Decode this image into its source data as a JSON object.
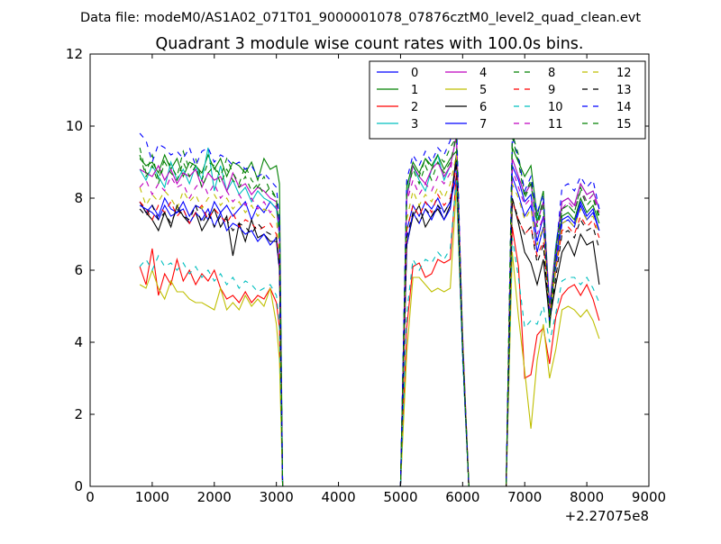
{
  "chart_data": {
    "type": "line",
    "suptitle": "Data file: modeM0/AS1A02_071T01_9000001078_07876cztM0_level2_quad_clean.evt",
    "title": "Quadrant 3 module wise count rates with 100.0s bins.",
    "xlabel": "",
    "ylabel": "",
    "x_offset_label": "+2.27075e8",
    "xlim": [
      0,
      9000
    ],
    "ylim": [
      0,
      12
    ],
    "xticks": [
      0,
      1000,
      2000,
      3000,
      4000,
      5000,
      6000,
      7000,
      8000,
      9000
    ],
    "yticks": [
      0,
      2,
      4,
      6,
      8,
      10,
      12
    ],
    "xtick_labels": [
      "0",
      "1000",
      "2000",
      "3000",
      "4000",
      "5000",
      "6000",
      "7000",
      "8000",
      "9000"
    ],
    "ytick_labels": [
      "0",
      "2",
      "4",
      "6",
      "8",
      "10",
      "12"
    ],
    "grid": false,
    "legend_position": "top-right",
    "legend_columns": 4,
    "x": [
      800,
      900,
      1000,
      1100,
      1200,
      1300,
      1400,
      1500,
      1600,
      1700,
      1800,
      1900,
      2000,
      2100,
      2200,
      2300,
      2400,
      2500,
      2600,
      2700,
      2800,
      2900,
      3000,
      3050,
      3100,
      3150,
      4950,
      5000,
      5100,
      5200,
      5300,
      5400,
      5500,
      5600,
      5700,
      5800,
      5900,
      6000,
      6100,
      6700,
      6800,
      6900,
      7000,
      7100,
      7200,
      7300,
      7400,
      7500,
      7600,
      7700,
      7800,
      7900,
      8000,
      8100,
      8200
    ],
    "series": [
      {
        "name": "0",
        "color": "#0000ff",
        "dash": "solid",
        "level": 7.7,
        "base": [
          0.2,
          -0.1,
          0.1,
          -0.2,
          0.3,
          0.0,
          -0.1,
          0.2,
          -0.2,
          0.1,
          0.0,
          -0.3,
          0.2,
          -0.1,
          0.1,
          -0.2,
          0.0,
          0.2,
          -0.3,
          0.1,
          -0.1,
          0.2,
          0.0,
          -0.4,
          -7.7,
          -7.7,
          -7.7,
          -7.7,
          -0.6,
          0.1,
          -0.2,
          0.2,
          0.0,
          0.3,
          -0.1,
          0.2,
          0.9,
          -4.0,
          -7.7,
          -7.7,
          0.9,
          0.4,
          -0.2,
          0.1,
          -1.2,
          -0.5,
          -2.9,
          -1.6,
          -0.4,
          -0.3,
          -0.5,
          0.1,
          -0.3,
          -0.1,
          -0.6
        ]
      },
      {
        "name": "1",
        "color": "#008000",
        "dash": "solid",
        "level": 8.9,
        "base": [
          0.2,
          0.0,
          0.1,
          -0.2,
          0.3,
          -0.1,
          0.2,
          -0.3,
          0.1,
          0.0,
          -0.2,
          0.3,
          -0.1,
          0.2,
          -0.3,
          0.1,
          0.0,
          -0.2,
          0.1,
          -0.4,
          0.2,
          -0.1,
          0.0,
          -0.5,
          -8.9,
          -8.9,
          -8.9,
          -8.9,
          -0.6,
          0.1,
          -0.2,
          0.2,
          0.0,
          0.3,
          -0.1,
          0.2,
          0.4,
          -5.0,
          -8.9,
          -8.9,
          0.5,
          0.1,
          -0.3,
          0.0,
          -1.4,
          -0.7,
          -4.5,
          -2.6,
          -1.4,
          -1.3,
          -1.5,
          -0.9,
          -1.3,
          -1.1,
          -1.6
        ]
      },
      {
        "name": "2",
        "color": "#ff0000",
        "dash": "solid",
        "level": 5.9,
        "base": [
          0.2,
          -0.3,
          0.7,
          -0.6,
          0.0,
          -0.3,
          0.4,
          -0.2,
          0.1,
          -0.3,
          0.0,
          -0.2,
          0.1,
          -0.4,
          -0.7,
          -0.6,
          -0.8,
          -0.5,
          -0.8,
          -0.6,
          -0.7,
          -0.4,
          -0.8,
          -1.5,
          -5.9,
          -5.9,
          -5.9,
          -5.9,
          -1.5,
          0.2,
          0.3,
          -0.1,
          0.0,
          0.4,
          0.3,
          0.4,
          2.8,
          -2.0,
          -5.9,
          -5.9,
          1.3,
          0.2,
          -2.9,
          -2.8,
          -1.7,
          -1.5,
          -2.5,
          -1.2,
          -0.6,
          -0.4,
          -0.3,
          -0.6,
          -0.3,
          -0.7,
          -1.3
        ]
      },
      {
        "name": "3",
        "color": "#00bfbf",
        "dash": "solid",
        "level": 8.5,
        "base": [
          0.3,
          0.0,
          0.4,
          0.1,
          -0.2,
          0.5,
          0.0,
          0.3,
          -0.1,
          0.4,
          0.0,
          0.9,
          -0.3,
          0.4,
          -0.3,
          0.0,
          -0.4,
          -0.2,
          -0.6,
          -0.3,
          -0.5,
          -0.6,
          -0.8,
          -1.6,
          -8.5,
          -8.5,
          -8.5,
          -8.5,
          -0.4,
          0.4,
          0.0,
          -0.3,
          0.3,
          0.7,
          0.0,
          0.4,
          1.2,
          -4.5,
          -8.5,
          -8.5,
          0.6,
          0.1,
          -0.4,
          -0.1,
          -1.1,
          -0.6,
          -3.5,
          -1.8,
          -0.6,
          -0.5,
          -0.7,
          -0.1,
          -0.4,
          -0.3,
          -0.8
        ]
      },
      {
        "name": "4",
        "color": "#bf00bf",
        "dash": "solid",
        "level": 8.6,
        "base": [
          0.2,
          0.1,
          0.0,
          0.3,
          -0.1,
          0.2,
          -0.2,
          0.1,
          0.0,
          0.2,
          -0.3,
          0.1,
          -0.1,
          0.0,
          -0.4,
          0.1,
          -0.3,
          -0.2,
          -0.5,
          -0.3,
          -0.4,
          -0.6,
          -0.7,
          -1.5,
          -8.6,
          -8.6,
          -8.6,
          -8.6,
          -0.6,
          0.3,
          0.0,
          -0.2,
          0.2,
          0.4,
          0.0,
          0.3,
          1.1,
          -4.4,
          -8.6,
          -8.6,
          0.5,
          0.0,
          -0.5,
          -0.2,
          -1.3,
          -0.7,
          -3.6,
          -2.0,
          -0.7,
          -0.6,
          -0.8,
          -0.2,
          -0.5,
          -0.4,
          -0.9
        ]
      },
      {
        "name": "5",
        "color": "#bfbf00",
        "dash": "solid",
        "level": 5.3,
        "base": [
          0.3,
          0.2,
          0.7,
          0.2,
          -0.1,
          0.4,
          0.1,
          0.1,
          -0.1,
          -0.2,
          -0.2,
          -0.3,
          -0.4,
          0.2,
          -0.4,
          -0.2,
          -0.4,
          0.0,
          -0.3,
          -0.1,
          -0.3,
          0.2,
          -0.8,
          -1.8,
          -5.3,
          -5.3,
          -5.3,
          -5.3,
          -1.6,
          0.5,
          0.5,
          0.3,
          0.1,
          0.2,
          0.1,
          0.2,
          3.0,
          -1.6,
          -5.3,
          -5.3,
          1.2,
          -0.6,
          -2.1,
          -3.7,
          -1.8,
          -0.8,
          -2.3,
          -1.5,
          -0.4,
          -0.3,
          -0.4,
          -0.6,
          -0.4,
          -0.7,
          -1.2
        ]
      },
      {
        "name": "6",
        "color": "#000000",
        "dash": "solid",
        "level": 7.4,
        "base": [
          0.5,
          0.2,
          0.0,
          -0.3,
          0.2,
          -0.2,
          0.4,
          0.1,
          -0.1,
          0.2,
          -0.3,
          0.0,
          0.3,
          -0.2,
          0.1,
          -1.0,
          -0.1,
          -0.6,
          0.0,
          -0.5,
          -0.4,
          -0.6,
          -0.6,
          -1.4,
          -7.4,
          -7.4,
          -7.4,
          -7.4,
          -0.7,
          0.1,
          0.4,
          -0.2,
          0.1,
          0.3,
          0.0,
          0.4,
          1.8,
          -3.6,
          -7.4,
          -7.4,
          0.6,
          -0.1,
          -0.9,
          -1.2,
          -1.8,
          -1.1,
          -2.8,
          -1.8,
          -0.9,
          -0.6,
          -1.0,
          -0.4,
          -0.7,
          -0.6,
          -1.8
        ]
      },
      {
        "name": "7",
        "color": "#0000ff",
        "dash": "solid",
        "level": 7.6,
        "base": [
          0.2,
          0.1,
          0.0,
          -0.2,
          0.2,
          -0.1,
          0.0,
          0.1,
          -0.3,
          0.0,
          -0.2,
          0.1,
          -0.4,
          0.0,
          -0.5,
          -0.3,
          -0.4,
          -0.6,
          -0.5,
          -0.8,
          -0.6,
          -0.9,
          -0.7,
          -1.6,
          -7.6,
          -7.6,
          -7.6,
          -7.6,
          -0.9,
          0.0,
          -0.3,
          0.1,
          -0.2,
          0.2,
          -0.2,
          0.1,
          1.4,
          -3.9,
          -7.6,
          -7.6,
          1.3,
          0.9,
          0.3,
          0.5,
          -0.8,
          -0.1,
          -2.6,
          -1.3,
          -0.2,
          -0.1,
          -0.3,
          0.3,
          -0.1,
          0.1,
          -0.5
        ]
      },
      {
        "name": "8",
        "color": "#008000",
        "dash": "dashed",
        "level": 8.9,
        "base": [
          0.5,
          -0.2,
          0.3,
          -0.4,
          0.2,
          0.0,
          -0.3,
          0.4,
          -0.1,
          0.2,
          -0.4,
          0.1,
          0.0,
          -0.3,
          0.2,
          -0.2,
          -0.5,
          0.0,
          -0.4,
          -0.6,
          -0.3,
          -0.7,
          -0.9,
          -1.8,
          -8.9,
          -8.9,
          -8.9,
          -8.9,
          -0.5,
          0.0,
          -0.3,
          0.2,
          -0.1,
          0.3,
          0.1,
          0.5,
          0.8,
          -4.9,
          -8.9,
          -8.9,
          0.9,
          0.3,
          -0.8,
          -0.4,
          -1.6,
          -0.9,
          -4.2,
          -2.3,
          -1.2,
          -1.1,
          -1.3,
          -0.6,
          -1.0,
          -0.8,
          -1.4
        ]
      },
      {
        "name": "9",
        "color": "#ff0000",
        "dash": "dashed",
        "level": 7.6,
        "base": [
          0.3,
          0.1,
          -0.2,
          0.2,
          0.0,
          0.3,
          -0.1,
          0.1,
          -0.3,
          0.0,
          0.2,
          -0.2,
          0.1,
          -0.1,
          -0.3,
          0.0,
          -0.4,
          -0.2,
          -0.3,
          -0.5,
          -0.4,
          -0.3,
          -0.6,
          -1.4,
          -7.6,
          -7.6,
          -7.6,
          -7.6,
          -0.5,
          0.2,
          -0.1,
          0.3,
          0.0,
          0.5,
          0.2,
          0.4,
          1.3,
          -3.8,
          -7.6,
          -7.6,
          0.3,
          -0.2,
          -0.6,
          -0.4,
          -1.2,
          -0.8,
          -2.8,
          -1.6,
          -0.5,
          -0.4,
          -0.6,
          -0.1,
          -0.4,
          -0.2,
          -0.7
        ]
      },
      {
        "name": "10",
        "color": "#00bfbf",
        "dash": "dashed",
        "level": 6.0,
        "base": [
          0.1,
          0.3,
          0.0,
          0.4,
          0.1,
          0.2,
          0.0,
          0.2,
          -0.1,
          0.1,
          -0.2,
          0.0,
          -0.3,
          -0.1,
          -0.4,
          -0.2,
          -0.5,
          -0.3,
          -0.4,
          -0.6,
          -0.5,
          -0.4,
          -0.7,
          -1.5,
          -6.0,
          -6.0,
          -6.0,
          -6.0,
          -1.2,
          0.3,
          0.0,
          0.3,
          0.2,
          0.5,
          0.3,
          0.6,
          2.5,
          -2.5,
          -6.0,
          -6.0,
          0.9,
          -0.2,
          -1.6,
          -1.4,
          -1.5,
          -1.0,
          -2.0,
          -1.2,
          -0.3,
          -0.2,
          -0.2,
          -0.4,
          -0.2,
          -0.5,
          -0.9
        ]
      },
      {
        "name": "11",
        "color": "#bf00bf",
        "dash": "dashed",
        "level": 8.2,
        "base": [
          0.1,
          0.3,
          -0.1,
          0.2,
          0.0,
          0.4,
          0.1,
          0.2,
          -0.2,
          0.1,
          0.3,
          -0.1,
          0.2,
          -0.2,
          0.0,
          -0.3,
          -0.1,
          -0.4,
          -0.2,
          -0.5,
          -0.3,
          -0.6,
          -0.4,
          -1.3,
          -8.2,
          -8.2,
          -8.2,
          -8.2,
          -0.3,
          0.3,
          -0.1,
          0.2,
          0.0,
          0.4,
          0.2,
          0.5,
          1.7,
          -4.0,
          -8.2,
          -8.2,
          0.6,
          0.1,
          -0.4,
          -0.2,
          -1.2,
          -0.7,
          -3.3,
          -1.8,
          -0.5,
          -0.3,
          -0.5,
          0.0,
          -0.3,
          -0.1,
          -0.6
        ]
      },
      {
        "name": "12",
        "color": "#bfbf00",
        "dash": "dashed",
        "level": 8.0,
        "base": [
          0.3,
          -0.2,
          0.1,
          -0.1,
          0.2,
          0.0,
          -0.3,
          0.2,
          -0.1,
          0.1,
          -0.3,
          0.0,
          0.1,
          -0.2,
          0.0,
          -0.3,
          -0.1,
          -0.4,
          -0.2,
          -0.5,
          -0.3,
          -0.4,
          -0.6,
          -1.5,
          -8.0,
          -8.0,
          -8.0,
          -8.0,
          -0.6,
          0.2,
          -0.2,
          0.1,
          -0.1,
          0.3,
          0.0,
          0.4,
          1.2,
          -3.9,
          -8.0,
          -8.0,
          0.4,
          0.0,
          -0.6,
          -0.3,
          -1.3,
          -0.8,
          -3.3,
          -1.9,
          -0.7,
          -0.6,
          -0.8,
          -0.3,
          -0.6,
          -0.5,
          -1.0
        ]
      },
      {
        "name": "13",
        "color": "#000000",
        "dash": "dashed",
        "level": 7.5,
        "base": [
          0.2,
          0.0,
          0.3,
          -0.1,
          0.1,
          -0.2,
          0.2,
          0.0,
          -0.1,
          0.3,
          -0.2,
          0.1,
          -0.3,
          0.0,
          -0.1,
          -0.4,
          -0.2,
          -0.3,
          -0.5,
          -0.2,
          -0.4,
          -0.5,
          -0.6,
          -1.4,
          -7.5,
          -7.5,
          -7.5,
          -7.5,
          -0.6,
          0.1,
          -0.2,
          0.2,
          0.0,
          0.3,
          0.1,
          0.4,
          1.5,
          -3.7,
          -7.5,
          -7.5,
          0.5,
          -0.1,
          -0.5,
          -0.3,
          -1.3,
          -0.8,
          -2.9,
          -1.7,
          -0.5,
          -0.4,
          -0.6,
          -0.1,
          -0.4,
          -0.3,
          -0.9
        ]
      },
      {
        "name": "14",
        "color": "#0000ff",
        "dash": "dashed",
        "level": 9.3,
        "base": [
          0.5,
          0.3,
          -0.3,
          0.2,
          0.1,
          -0.1,
          0.0,
          -0.2,
          0.1,
          -0.4,
          0.0,
          0.1,
          -0.3,
          -0.1,
          -0.2,
          -0.4,
          -0.3,
          -0.5,
          -0.4,
          -0.7,
          -0.6,
          -0.8,
          -1.0,
          -1.9,
          -9.3,
          -9.3,
          -9.3,
          -9.3,
          -0.8,
          -0.1,
          -0.4,
          0.0,
          -0.3,
          0.1,
          -0.1,
          0.3,
          1.0,
          -5.3,
          -9.3,
          -9.3,
          0.4,
          -0.2,
          -1.1,
          -0.7,
          -1.7,
          -1.2,
          -4.7,
          -2.8,
          -1.0,
          -0.9,
          -1.1,
          -0.7,
          -1.0,
          -0.8,
          -1.6
        ]
      },
      {
        "name": "15",
        "color": "#008000",
        "dash": "dashed",
        "level": 8.7,
        "base": [
          0.5,
          -0.1,
          0.2,
          -0.3,
          0.3,
          0.0,
          -0.2,
          0.3,
          -0.1,
          0.2,
          -0.4,
          0.0,
          0.2,
          -0.3,
          0.1,
          -0.2,
          -0.4,
          -0.1,
          -0.5,
          -0.3,
          -0.6,
          -0.4,
          -0.7,
          -1.7,
          -8.7,
          -8.7,
          -8.7,
          -8.7,
          -0.6,
          0.1,
          -0.3,
          0.2,
          -0.2,
          0.3,
          0.0,
          0.3,
          1.0,
          -4.7,
          -8.7,
          -8.7,
          1.0,
          0.3,
          -0.7,
          -0.3,
          -1.5,
          -0.9,
          -4.0,
          -2.2,
          -1.0,
          -0.9,
          -1.1,
          -0.5,
          -0.9,
          -0.7,
          -1.3
        ]
      }
    ]
  }
}
